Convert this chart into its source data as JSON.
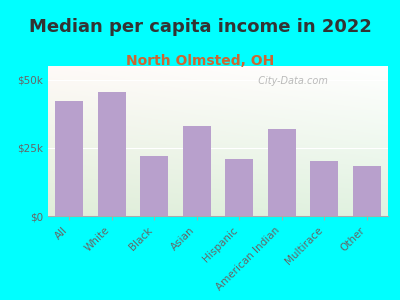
{
  "title": "Median per capita income in 2022",
  "subtitle": "North Olmsted, OH",
  "categories": [
    "All",
    "White",
    "Black",
    "Asian",
    "Hispanic",
    "American Indian",
    "Multirace",
    "Other"
  ],
  "values": [
    42000,
    45500,
    22000,
    33000,
    21000,
    32000,
    20000,
    18500
  ],
  "bar_color": "#b8a0cc",
  "background_outer": "#00ffff",
  "background_inner_topleft": "#e8f5e8",
  "background_inner_topright": "#f8f8f0",
  "ylim": [
    0,
    55000
  ],
  "yticks": [
    0,
    25000,
    50000
  ],
  "ytick_labels": [
    "$0",
    "$25k",
    "$50k"
  ],
  "title_fontsize": 13,
  "title_color": "#333333",
  "subtitle_fontsize": 10,
  "subtitle_color": "#cc6633",
  "tick_label_fontsize": 7.5,
  "tick_label_color": "#666666",
  "watermark": "  City-Data.com"
}
